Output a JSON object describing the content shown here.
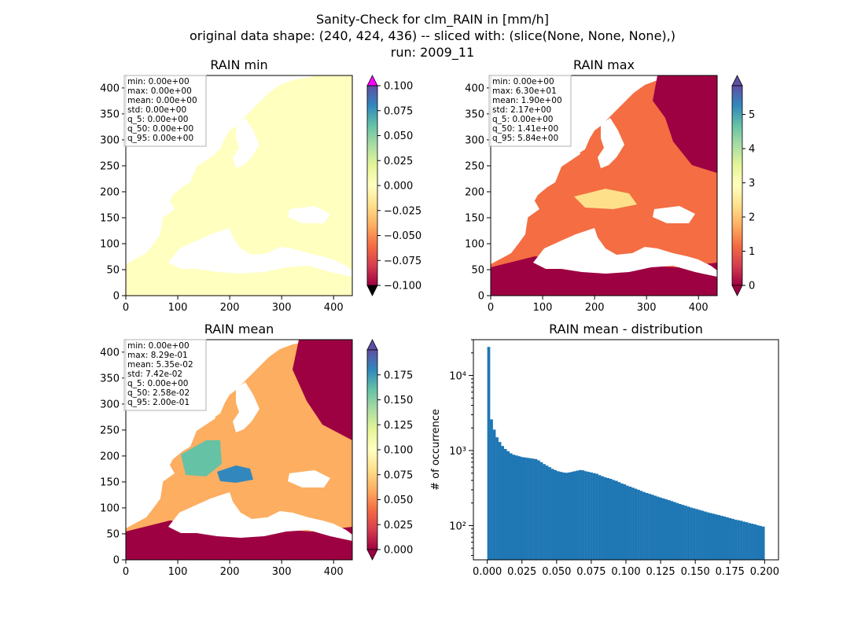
{
  "suptitle": [
    "Sanity-Check for clm_RAIN in [mm/h]",
    "original data shape: (240, 424, 436) -- sliced with: (slice(None, None, None),)",
    "run: 2009_11"
  ],
  "colors": {
    "land_low": "#9e0142",
    "ocean_void": "#ffffff",
    "hist_bar": "#1f77b4",
    "over": "#ff00ff",
    "under": "#000000",
    "min_panel_fill": "#ffffbf"
  },
  "chart_data": [
    {
      "type": "heatmap",
      "title": "RAIN min",
      "xlim": [
        0,
        436
      ],
      "ylim": [
        0,
        424
      ],
      "xticks": [
        0,
        100,
        200,
        300,
        400
      ],
      "yticks": [
        0,
        50,
        100,
        150,
        200,
        250,
        300,
        350,
        400
      ],
      "colormap": "Spectral",
      "colorbar": {
        "vmin": -0.1,
        "vmax": 0.1,
        "ticks": [
          "0.100",
          "0.075",
          "0.050",
          "0.025",
          "0.000",
          "−0.025",
          "−0.050",
          "−0.075",
          "−0.100"
        ],
        "extend": "both"
      },
      "stats": [
        "min: 0.00e+00",
        "max: 0.00e+00",
        "mean: 0.00e+00",
        "std: 0.00e+00",
        "q_5: 0.00e+00",
        "q_50: 0.00e+00",
        "q_95: 0.00e+00"
      ]
    },
    {
      "type": "heatmap",
      "title": "RAIN max",
      "xlim": [
        0,
        436
      ],
      "ylim": [
        0,
        424
      ],
      "xticks": [
        0,
        100,
        200,
        300,
        400
      ],
      "yticks": [
        0,
        50,
        100,
        150,
        200,
        250,
        300,
        350,
        400
      ],
      "colormap": "Spectral",
      "colorbar": {
        "vmin": 0,
        "vmax": 5.84,
        "ticks": [
          "5",
          "4",
          "3",
          "2",
          "1",
          "0"
        ],
        "extend": "both"
      },
      "stats": [
        "min: 0.00e+00",
        "max: 6.30e+01",
        "mean: 1.90e+00",
        "std: 2.17e+00",
        "q_5: 0.00e+00",
        "q_50: 1.41e+00",
        "q_95: 5.84e+00"
      ]
    },
    {
      "type": "heatmap",
      "title": "RAIN mean",
      "xlim": [
        0,
        436
      ],
      "ylim": [
        0,
        424
      ],
      "xticks": [
        0,
        100,
        200,
        300,
        400
      ],
      "yticks": [
        0,
        50,
        100,
        150,
        200,
        250,
        300,
        350,
        400
      ],
      "colormap": "Spectral",
      "colorbar": {
        "vmin": 0,
        "vmax": 0.2,
        "ticks": [
          "0.175",
          "0.150",
          "0.125",
          "0.100",
          "0.075",
          "0.050",
          "0.025",
          "0.000"
        ],
        "extend": "both"
      },
      "stats": [
        "min: 0.00e+00",
        "max: 8.29e-01",
        "mean: 5.35e-02",
        "std: 7.42e-02",
        "q_5: 0.00e+00",
        "q_50: 2.58e-02",
        "q_95: 2.00e-01"
      ]
    },
    {
      "type": "bar",
      "title": "RAIN mean - distribution",
      "ylabel": "# of occurrence",
      "xlim": [
        -0.01,
        0.21
      ],
      "ylim": [
        35,
        30000
      ],
      "yscale": "log",
      "xticks": [
        "0.000",
        "0.025",
        "0.050",
        "0.075",
        "0.100",
        "0.125",
        "0.150",
        "0.175",
        "0.200"
      ],
      "yticks": [
        "10²",
        "10³",
        "10⁴"
      ],
      "bin_width": 0.002,
      "bins_start": 0.0,
      "values": [
        24000,
        2600,
        1900,
        1500,
        1300,
        1150,
        1050,
        980,
        920,
        880,
        860,
        840,
        820,
        810,
        800,
        790,
        780,
        770,
        740,
        700,
        660,
        630,
        600,
        570,
        550,
        530,
        520,
        510,
        505,
        510,
        520,
        530,
        540,
        550,
        545,
        530,
        520,
        510,
        500,
        490,
        470,
        455,
        440,
        430,
        420,
        405,
        395,
        380,
        365,
        355,
        340,
        330,
        320,
        310,
        300,
        290,
        280,
        272,
        265,
        258,
        250,
        243,
        236,
        230,
        224,
        218,
        212,
        206,
        200,
        194,
        189,
        184,
        179,
        174,
        170,
        166,
        162,
        158,
        154,
        150,
        147,
        144,
        141,
        138,
        135,
        132,
        129,
        126,
        123,
        120,
        118,
        116,
        113,
        111,
        108,
        106,
        104,
        101,
        99,
        97
      ]
    }
  ]
}
